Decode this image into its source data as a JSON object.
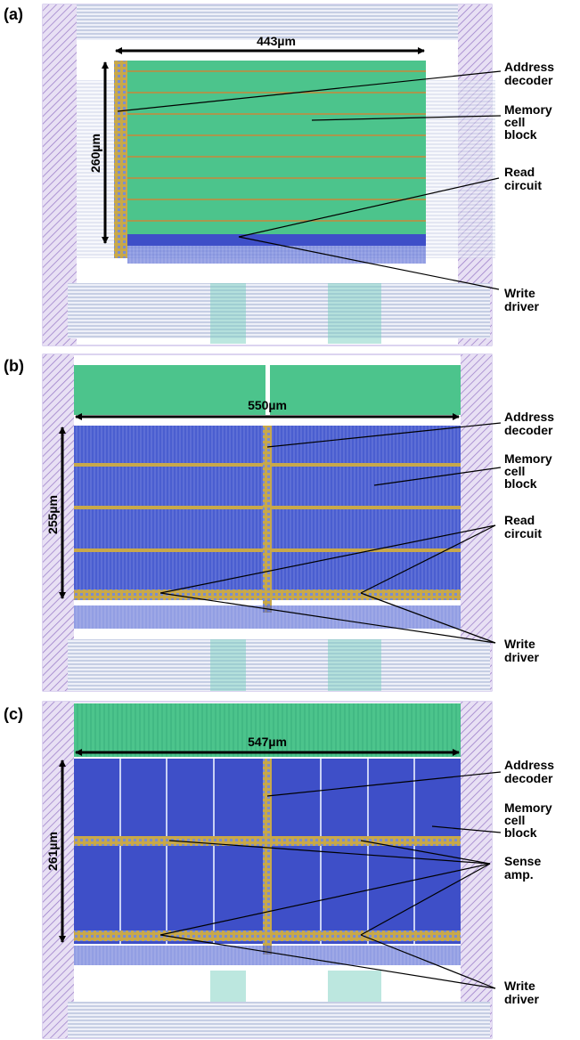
{
  "panels": [
    {
      "label": "(a)",
      "width": "443µm",
      "height": "260µm",
      "annotations": [
        {
          "lines": [
            "Address",
            "decoder"
          ]
        },
        {
          "lines": [
            "Memory",
            "cell",
            "block"
          ]
        },
        {
          "lines": [
            "Read",
            "circuit"
          ]
        },
        {
          "lines": [
            "Write",
            "driver"
          ]
        }
      ]
    },
    {
      "label": "(b)",
      "width": "550µm",
      "height": "255µm",
      "annotations": [
        {
          "lines": [
            "Address",
            "decoder"
          ]
        },
        {
          "lines": [
            "Memory",
            "cell",
            "block"
          ]
        },
        {
          "lines": [
            "Read",
            "circuit"
          ]
        },
        {
          "lines": [
            "Write",
            "driver"
          ]
        }
      ]
    },
    {
      "label": "(c)",
      "width": "547µm",
      "height": "261µm",
      "annotations": [
        {
          "lines": [
            "Address",
            "decoder"
          ]
        },
        {
          "lines": [
            "Memory",
            "cell",
            "block"
          ]
        },
        {
          "lines": [
            "Sense",
            "amp."
          ]
        },
        {
          "lines": [
            "Write",
            "driver"
          ]
        }
      ]
    }
  ]
}
